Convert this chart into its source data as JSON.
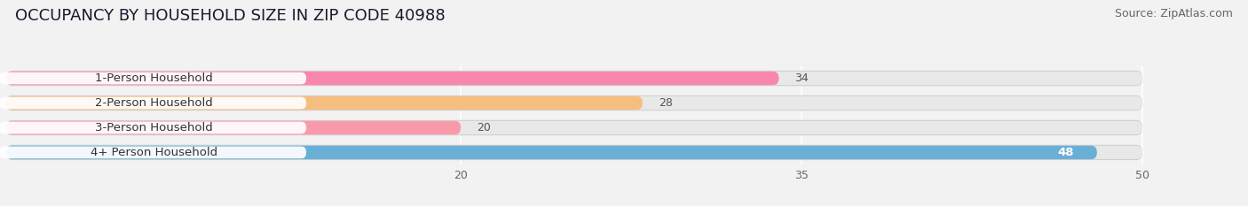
{
  "title": "OCCUPANCY BY HOUSEHOLD SIZE IN ZIP CODE 40988",
  "source": "Source: ZipAtlas.com",
  "categories": [
    "1-Person Household",
    "2-Person Household",
    "3-Person Household",
    "4+ Person Household"
  ],
  "values": [
    34,
    28,
    20,
    48
  ],
  "bar_colors": [
    "#f986ae",
    "#f5be7e",
    "#f99aaa",
    "#6aafd6"
  ],
  "value_colors": [
    "#555555",
    "#555555",
    "#555555",
    "#ffffff"
  ],
  "xlim": [
    0,
    53
  ],
  "xmin": 0,
  "xmax": 50,
  "xticks": [
    20,
    35,
    50
  ],
  "background_color": "#f2f2f2",
  "bar_bg_color": "#e2e2e2",
  "bar_bg_color2": "#e8e8e8",
  "title_fontsize": 13,
  "source_fontsize": 9,
  "label_fontsize": 9.5,
  "value_fontsize": 9,
  "tick_fontsize": 9
}
